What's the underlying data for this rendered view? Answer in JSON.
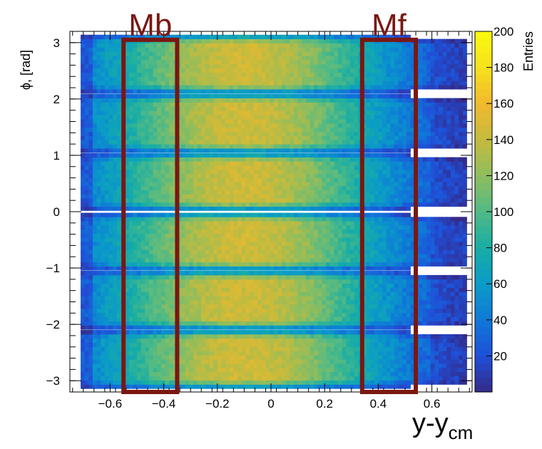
{
  "chart_data": {
    "type": "heatmap",
    "title": "",
    "xlabel": "y-y",
    "xlabel_subscript": "cm",
    "ylabel": "ϕ, [rad]",
    "zlabel": "Entries",
    "xlim": [
      -0.75,
      0.75
    ],
    "ylim": [
      -3.2,
      3.2
    ],
    "zlim": [
      0,
      200
    ],
    "x_ticks": [
      -0.6,
      -0.4,
      -0.2,
      0,
      0.2,
      0.4,
      0.6
    ],
    "x_tick_labels": [
      "−0.6",
      "−0.4",
      "−0.2",
      "0",
      "0.2",
      "0.4",
      "0.6"
    ],
    "y_ticks": [
      -3,
      -2,
      -1,
      0,
      1,
      2,
      3
    ],
    "y_tick_labels": [
      "−3",
      "−2",
      "−1",
      "0",
      "1",
      "2",
      "3"
    ],
    "z_ticks": [
      20,
      40,
      60,
      80,
      100,
      120,
      140,
      160,
      180,
      200
    ],
    "z_tick_labels": [
      "20",
      "40",
      "60",
      "80",
      "100",
      "120",
      "140",
      "160",
      "180",
      "200"
    ],
    "colormap": [
      "#352a87",
      "#1f4fd8",
      "#0f78d8",
      "#0a9bc8",
      "#18ada5",
      "#50ba86",
      "#8fbd5e",
      "#c5bb3d",
      "#f0b92e",
      "#f6e11d",
      "#f9fb0e"
    ],
    "sectors": [
      {
        "phi_range": [
          -3.14,
          -2.1
        ],
        "x_range": [
          -0.71,
          0.73
        ]
      },
      {
        "phi_range": [
          -2.09,
          -1.05
        ],
        "x_range": [
          -0.71,
          0.73
        ]
      },
      {
        "phi_range": [
          -1.04,
          -0.02
        ],
        "x_range": [
          -0.71,
          0.73
        ]
      },
      {
        "phi_range": [
          0.02,
          1.04
        ],
        "x_range": [
          -0.71,
          0.73
        ]
      },
      {
        "phi_range": [
          1.05,
          2.09
        ],
        "x_range": [
          -0.71,
          0.73
        ]
      },
      {
        "phi_range": [
          2.1,
          3.14
        ],
        "x_range": [
          -0.71,
          0.73
        ]
      }
    ],
    "peak_entries": 150,
    "peak_x": -0.1,
    "annotations": [
      {
        "label": "Mb",
        "x_range": [
          -0.55,
          -0.35
        ],
        "y_range": [
          -3.2,
          3.05
        ],
        "color": "#7a1712"
      },
      {
        "label": "Mf",
        "x_range": [
          0.34,
          0.54
        ],
        "y_range": [
          -3.2,
          3.05
        ],
        "color": "#7a1712"
      }
    ]
  }
}
